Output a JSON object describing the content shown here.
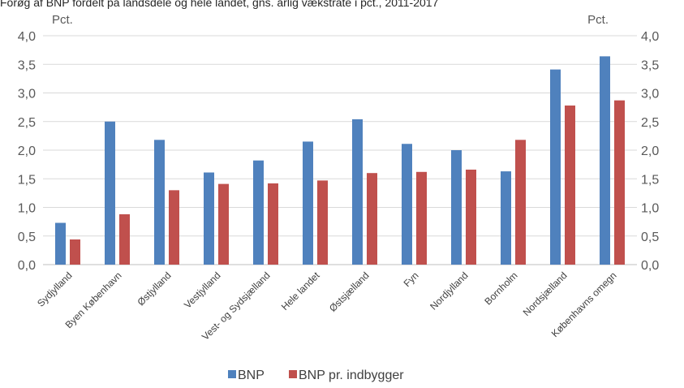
{
  "chart_data": {
    "type": "bar",
    "title": "Forøg af BNP fordelt på landsdele og hele landet, gns. årlig vækstrate i pct., 2011-2017",
    "ylabel_left": "Pct.",
    "ylabel_right": "Pct.",
    "ylim": [
      0,
      4.0
    ],
    "yticks": [
      "0,0",
      "0,5",
      "1,0",
      "1,5",
      "2,0",
      "2,5",
      "3,0",
      "3,5",
      "4,0"
    ],
    "categories": [
      "Sydjylland",
      "Byen København",
      "Østjylland",
      "Vestjylland",
      "Vest- og Sydsjælland",
      "Hele landet",
      "Østsjælland",
      "Fyn",
      "Nordjylland",
      "Bornholm",
      "Nordsjælland",
      "Københavns omegn"
    ],
    "series": [
      {
        "name": "BNP",
        "color": "#4F81BD",
        "values": [
          0.73,
          2.5,
          2.18,
          1.61,
          1.82,
          2.15,
          2.54,
          2.11,
          2.0,
          1.63,
          3.41,
          3.64
        ]
      },
      {
        "name": "BNP pr. indbygger",
        "color": "#C0504D",
        "values": [
          0.44,
          0.88,
          1.3,
          1.41,
          1.42,
          1.47,
          1.6,
          1.62,
          1.66,
          2.18,
          2.78,
          2.87
        ]
      }
    ],
    "grid": true,
    "legend_position": "bottom"
  }
}
